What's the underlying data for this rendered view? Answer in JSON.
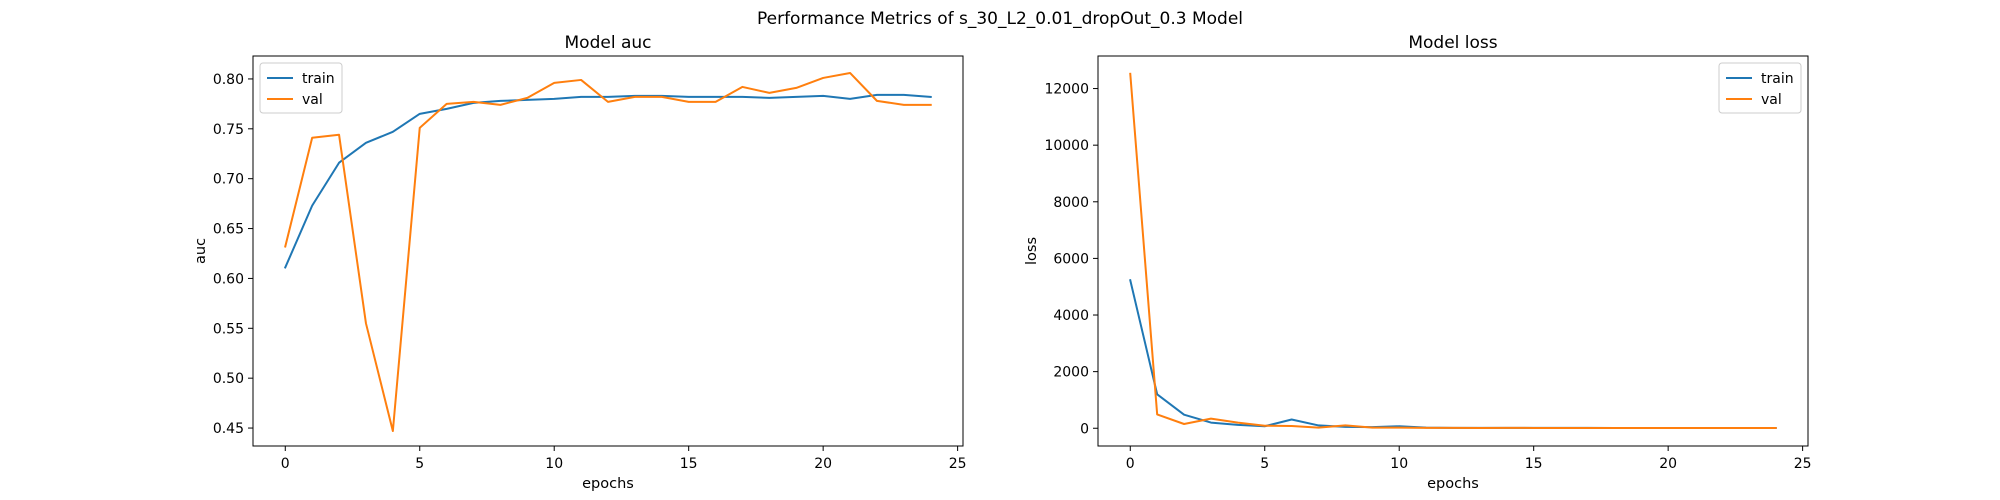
{
  "figure_title": "Performance Metrics of s_30_L2_0.01_dropOut_0.3 Model",
  "colors": {
    "train": "#1f77b4",
    "val": "#ff7f0e"
  },
  "chart_data": [
    {
      "type": "line",
      "title": "Model auc",
      "xlabel": "epochs",
      "ylabel": "auc",
      "xlim": [
        -1.2,
        25.2
      ],
      "ylim": [
        0.432,
        0.823
      ],
      "xticks": [
        0,
        5,
        10,
        15,
        20,
        25
      ],
      "yticks": [
        0.45,
        0.5,
        0.55,
        0.6,
        0.65,
        0.7,
        0.75,
        0.8
      ],
      "ytick_labels": [
        "0.45",
        "0.50",
        "0.55",
        "0.60",
        "0.65",
        "0.70",
        "0.75",
        "0.80"
      ],
      "legend": "upper-left",
      "grid": false,
      "x": [
        0,
        1,
        2,
        3,
        4,
        5,
        6,
        7,
        8,
        9,
        10,
        11,
        12,
        13,
        14,
        15,
        16,
        17,
        18,
        19,
        20,
        21,
        22,
        23,
        24
      ],
      "series": [
        {
          "name": "train",
          "values": [
            0.611,
            0.673,
            0.716,
            0.736,
            0.747,
            0.765,
            0.77,
            0.776,
            0.778,
            0.779,
            0.78,
            0.782,
            0.782,
            0.783,
            0.783,
            0.782,
            0.782,
            0.782,
            0.781,
            0.782,
            0.783,
            0.78,
            0.784,
            0.784,
            0.782
          ]
        },
        {
          "name": "val",
          "values": [
            0.632,
            0.741,
            0.744,
            0.555,
            0.447,
            0.751,
            0.775,
            0.777,
            0.774,
            0.781,
            0.796,
            0.799,
            0.777,
            0.782,
            0.782,
            0.777,
            0.777,
            0.792,
            0.786,
            0.791,
            0.801,
            0.806,
            0.778,
            0.774,
            0.774
          ]
        }
      ]
    },
    {
      "type": "line",
      "title": "Model loss",
      "xlabel": "epochs",
      "ylabel": "loss",
      "xlim": [
        -1.2,
        25.2
      ],
      "ylim": [
        -627,
        13150
      ],
      "xticks": [
        0,
        5,
        10,
        15,
        20,
        25
      ],
      "yticks": [
        0,
        2000,
        4000,
        6000,
        8000,
        10000,
        12000
      ],
      "ytick_labels": [
        "0",
        "2000",
        "4000",
        "6000",
        "8000",
        "10000",
        "12000"
      ],
      "legend": "upper-right",
      "grid": false,
      "x": [
        0,
        1,
        2,
        3,
        4,
        5,
        6,
        7,
        8,
        9,
        10,
        11,
        12,
        13,
        14,
        15,
        16,
        17,
        18,
        19,
        20,
        21,
        22,
        23,
        24
      ],
      "series": [
        {
          "name": "train",
          "values": [
            5230,
            1200,
            480,
            200,
            120,
            70,
            310,
            100,
            50,
            40,
            70,
            20,
            15,
            15,
            15,
            12,
            12,
            12,
            10,
            10,
            10,
            10,
            10,
            10,
            10
          ]
        },
        {
          "name": "val",
          "values": [
            12520,
            490,
            150,
            340,
            200,
            90,
            80,
            20,
            100,
            20,
            20,
            15,
            15,
            10,
            15,
            10,
            10,
            10,
            10,
            10,
            10,
            10,
            10,
            10,
            10
          ]
        }
      ]
    }
  ]
}
